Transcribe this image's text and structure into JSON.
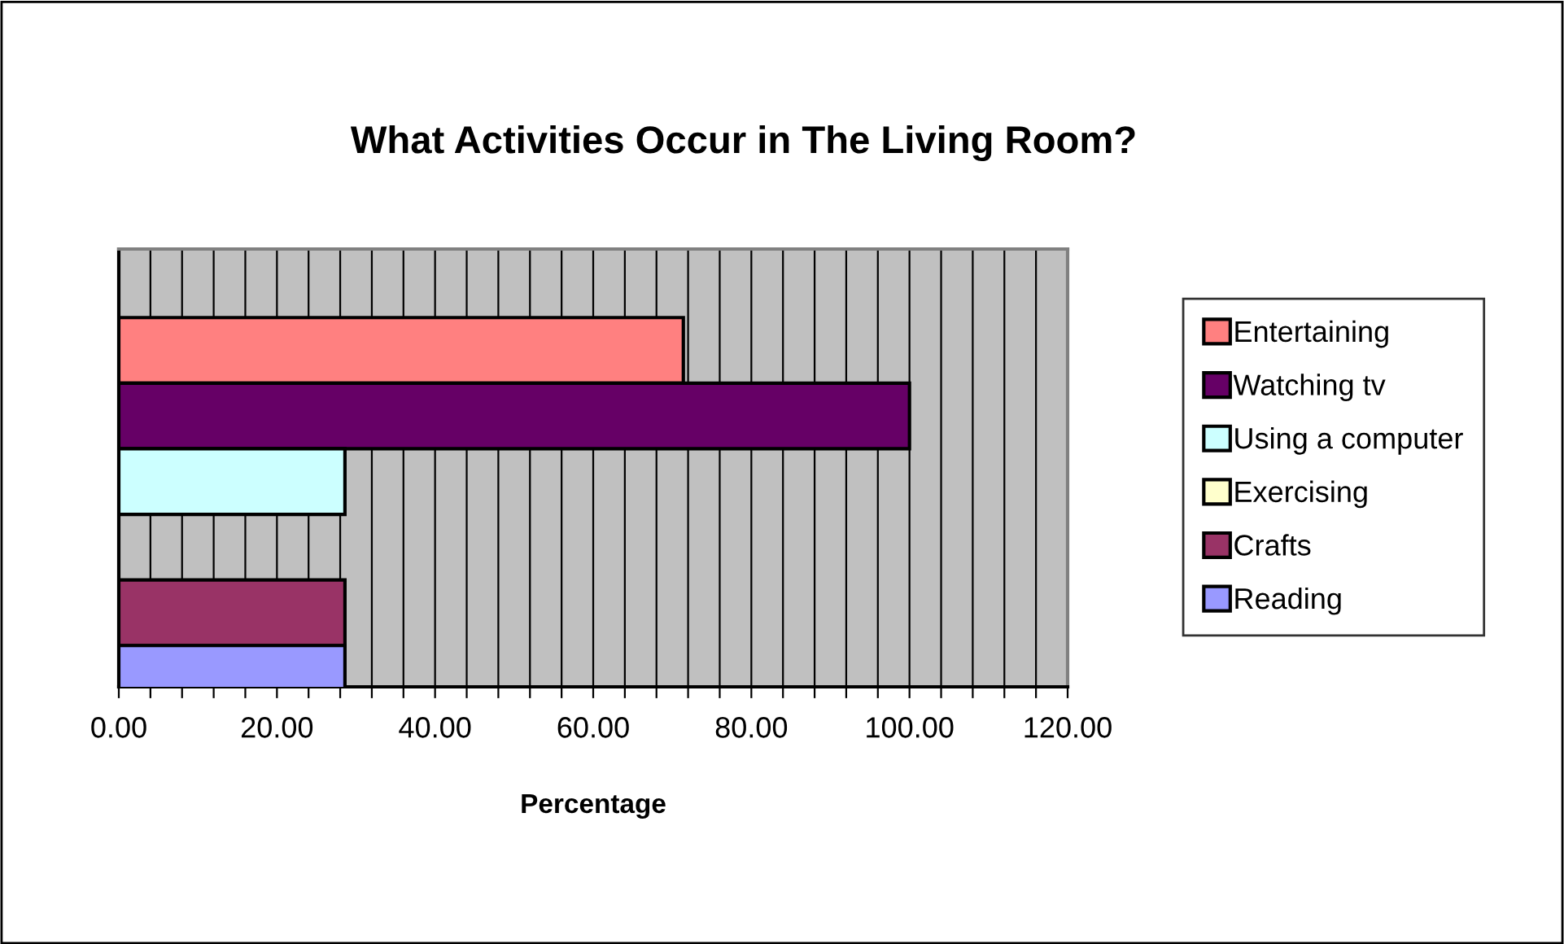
{
  "chart_data": {
    "type": "bar",
    "orientation": "horizontal",
    "title": "What Activities Occur in The Living Room?",
    "xlabel": "Percentage",
    "categories": [
      null
    ],
    "series": [
      {
        "name": "Entertaining",
        "color": "#ff8080",
        "values": [
          71.4
        ]
      },
      {
        "name": "Watching tv",
        "color": "#660066",
        "values": [
          100
        ]
      },
      {
        "name": "Using a computer",
        "color": "#ccffff",
        "values": [
          28.6
        ]
      },
      {
        "name": "Exercising",
        "color": "#ffffcc",
        "values": [
          0
        ]
      },
      {
        "name": "Crafts",
        "color": "#993366",
        "values": [
          28.6
        ]
      },
      {
        "name": "Reading",
        "color": "#9999ff",
        "values": [
          28.6
        ]
      }
    ],
    "xlim": [
      0,
      120
    ],
    "xticks": [
      {
        "value": 0,
        "label": "0.00"
      },
      {
        "value": 4,
        "label": null
      },
      {
        "value": 8,
        "label": null
      },
      {
        "value": 12,
        "label": null
      },
      {
        "value": 16,
        "label": null
      },
      {
        "value": 20,
        "label": "20.00"
      },
      {
        "value": 24,
        "label": null
      },
      {
        "value": 28,
        "label": null
      },
      {
        "value": 32,
        "label": null
      },
      {
        "value": 36,
        "label": null
      },
      {
        "value": 40,
        "label": "40.00"
      },
      {
        "value": 44,
        "label": null
      },
      {
        "value": 48,
        "label": null
      },
      {
        "value": 52,
        "label": null
      },
      {
        "value": 56,
        "label": null
      },
      {
        "value": 60,
        "label": "60.00"
      },
      {
        "value": 64,
        "label": null
      },
      {
        "value": 68,
        "label": null
      },
      {
        "value": 72,
        "label": null
      },
      {
        "value": 76,
        "label": null
      },
      {
        "value": 80,
        "label": "80.00"
      },
      {
        "value": 84,
        "label": null
      },
      {
        "value": 88,
        "label": null
      },
      {
        "value": 92,
        "label": null
      },
      {
        "value": 96,
        "label": null
      },
      {
        "value": 100,
        "label": "100.00"
      },
      {
        "value": 104,
        "label": null
      },
      {
        "value": 108,
        "label": null
      },
      {
        "value": 112,
        "label": null
      },
      {
        "value": 116,
        "label": null
      },
      {
        "value": 120,
        "label": "120.00"
      }
    ],
    "grid": "x",
    "legend": "right",
    "tick_labels": "x"
  }
}
